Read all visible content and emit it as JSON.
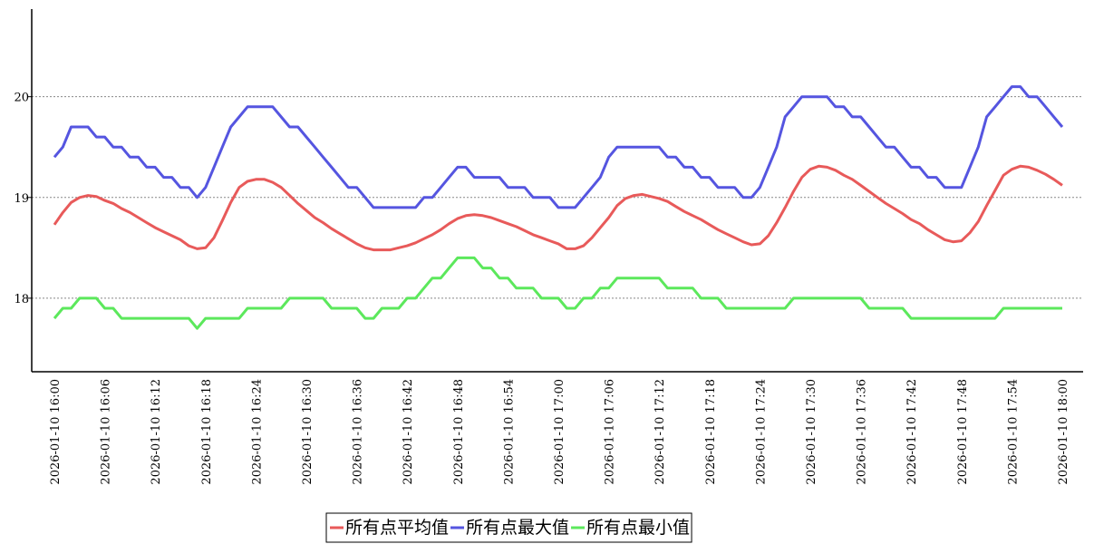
{
  "chart_data": {
    "type": "line",
    "categories": [
      "2026-01-10 16:00",
      null,
      null,
      null,
      null,
      null,
      "2026-01-10 16:06",
      null,
      null,
      null,
      null,
      null,
      "2026-01-10 16:12",
      null,
      null,
      null,
      null,
      null,
      "2026-01-10 16:18",
      null,
      null,
      null,
      null,
      null,
      "2026-01-10 16:24",
      null,
      null,
      null,
      null,
      null,
      "2026-01-10 16:30",
      null,
      null,
      null,
      null,
      null,
      "2026-01-10 16:36",
      null,
      null,
      null,
      null,
      null,
      "2026-01-10 16:42",
      null,
      null,
      null,
      null,
      null,
      "2026-01-10 16:48",
      null,
      null,
      null,
      null,
      null,
      "2026-01-10 16:54",
      null,
      null,
      null,
      null,
      null,
      "2026-01-10 17:00",
      null,
      null,
      null,
      null,
      null,
      "2026-01-10 17:06",
      null,
      null,
      null,
      null,
      null,
      "2026-01-10 17:12",
      null,
      null,
      null,
      null,
      null,
      "2026-01-10 17:18",
      null,
      null,
      null,
      null,
      null,
      "2026-01-10 17:24",
      null,
      null,
      null,
      null,
      null,
      "2026-01-10 17:30",
      null,
      null,
      null,
      null,
      null,
      "2026-01-10 17:36",
      null,
      null,
      null,
      null,
      null,
      "2026-01-10 17:42",
      null,
      null,
      null,
      null,
      null,
      "2026-01-10 17:48",
      null,
      null,
      null,
      null,
      null,
      "2026-01-10 17:54",
      null,
      null,
      null,
      null,
      null,
      "2026-01-10 18:00"
    ],
    "series": [
      {
        "name": "所有点平均值",
        "color": "#e85a5a",
        "values": [
          18.73,
          18.85,
          18.95,
          19.0,
          19.02,
          19.01,
          18.97,
          18.94,
          18.89,
          18.85,
          18.8,
          18.75,
          18.7,
          18.66,
          18.62,
          18.58,
          18.52,
          18.49,
          18.5,
          18.6,
          18.77,
          18.95,
          19.1,
          19.16,
          19.18,
          19.18,
          19.15,
          19.1,
          19.02,
          18.94,
          18.87,
          18.8,
          18.75,
          18.69,
          18.64,
          18.59,
          18.54,
          18.5,
          18.48,
          18.48,
          18.48,
          18.5,
          18.52,
          18.55,
          18.59,
          18.63,
          18.68,
          18.74,
          18.79,
          18.82,
          18.83,
          18.82,
          18.8,
          18.77,
          18.74,
          18.71,
          18.67,
          18.63,
          18.6,
          18.57,
          18.54,
          18.49,
          18.49,
          18.52,
          18.6,
          18.7,
          18.8,
          18.92,
          18.99,
          19.02,
          19.03,
          19.01,
          18.99,
          18.96,
          18.91,
          18.86,
          18.82,
          18.78,
          18.73,
          18.68,
          18.64,
          18.6,
          18.56,
          18.53,
          18.54,
          18.62,
          18.75,
          18.9,
          19.06,
          19.2,
          19.28,
          19.31,
          19.3,
          19.27,
          19.22,
          19.18,
          19.12,
          19.06,
          19.0,
          18.94,
          18.89,
          18.84,
          18.78,
          18.74,
          18.68,
          18.63,
          18.58,
          18.56,
          18.57,
          18.65,
          18.76,
          18.92,
          19.07,
          19.22,
          19.28,
          19.31,
          19.3,
          19.27,
          19.23,
          19.18,
          19.12
        ]
      },
      {
        "name": "所有点最大值",
        "color": "#5555e0",
        "values": [
          19.4,
          19.5,
          19.7,
          19.7,
          19.7,
          19.6,
          19.6,
          19.5,
          19.5,
          19.4,
          19.4,
          19.3,
          19.3,
          19.2,
          19.2,
          19.1,
          19.1,
          19.0,
          19.1,
          19.3,
          19.5,
          19.7,
          19.8,
          19.9,
          19.9,
          19.9,
          19.9,
          19.8,
          19.7,
          19.7,
          19.6,
          19.5,
          19.4,
          19.3,
          19.2,
          19.1,
          19.1,
          19.0,
          18.9,
          18.9,
          18.9,
          18.9,
          18.9,
          18.9,
          19.0,
          19.0,
          19.1,
          19.2,
          19.3,
          19.3,
          19.2,
          19.2,
          19.2,
          19.2,
          19.1,
          19.1,
          19.1,
          19.0,
          19.0,
          19.0,
          18.9,
          18.9,
          18.9,
          19.0,
          19.1,
          19.2,
          19.4,
          19.5,
          19.5,
          19.5,
          19.5,
          19.5,
          19.5,
          19.4,
          19.4,
          19.3,
          19.3,
          19.2,
          19.2,
          19.1,
          19.1,
          19.1,
          19.0,
          19.0,
          19.1,
          19.3,
          19.5,
          19.8,
          19.9,
          20.0,
          20.0,
          20.0,
          20.0,
          19.9,
          19.9,
          19.8,
          19.8,
          19.7,
          19.6,
          19.5,
          19.5,
          19.4,
          19.3,
          19.3,
          19.2,
          19.2,
          19.1,
          19.1,
          19.1,
          19.3,
          19.5,
          19.8,
          19.9,
          20.0,
          20.1,
          20.1,
          20.0,
          20.0,
          19.9,
          19.8,
          19.7
        ]
      },
      {
        "name": "所有点最小值",
        "color": "#5ce85c",
        "values": [
          17.8,
          17.9,
          17.9,
          18.0,
          18.0,
          18.0,
          17.9,
          17.9,
          17.8,
          17.8,
          17.8,
          17.8,
          17.8,
          17.8,
          17.8,
          17.8,
          17.8,
          17.7,
          17.8,
          17.8,
          17.8,
          17.8,
          17.8,
          17.9,
          17.9,
          17.9,
          17.9,
          17.9,
          18.0,
          18.0,
          18.0,
          18.0,
          18.0,
          17.9,
          17.9,
          17.9,
          17.9,
          17.8,
          17.8,
          17.9,
          17.9,
          17.9,
          18.0,
          18.0,
          18.1,
          18.2,
          18.2,
          18.3,
          18.4,
          18.4,
          18.4,
          18.3,
          18.3,
          18.2,
          18.2,
          18.1,
          18.1,
          18.1,
          18.0,
          18.0,
          18.0,
          17.9,
          17.9,
          18.0,
          18.0,
          18.1,
          18.1,
          18.2,
          18.2,
          18.2,
          18.2,
          18.2,
          18.2,
          18.1,
          18.1,
          18.1,
          18.1,
          18.0,
          18.0,
          18.0,
          17.9,
          17.9,
          17.9,
          17.9,
          17.9,
          17.9,
          17.9,
          17.9,
          18.0,
          18.0,
          18.0,
          18.0,
          18.0,
          18.0,
          18.0,
          18.0,
          18.0,
          17.9,
          17.9,
          17.9,
          17.9,
          17.9,
          17.8,
          17.8,
          17.8,
          17.8,
          17.8,
          17.8,
          17.8,
          17.8,
          17.8,
          17.8,
          17.8,
          17.9,
          17.9,
          17.9,
          17.9,
          17.9,
          17.9,
          17.9,
          17.9
        ]
      }
    ],
    "ylim": [
      17.27,
      20.87
    ],
    "yticks": [
      18,
      19,
      20
    ],
    "grid": true,
    "legend": "bottom"
  }
}
